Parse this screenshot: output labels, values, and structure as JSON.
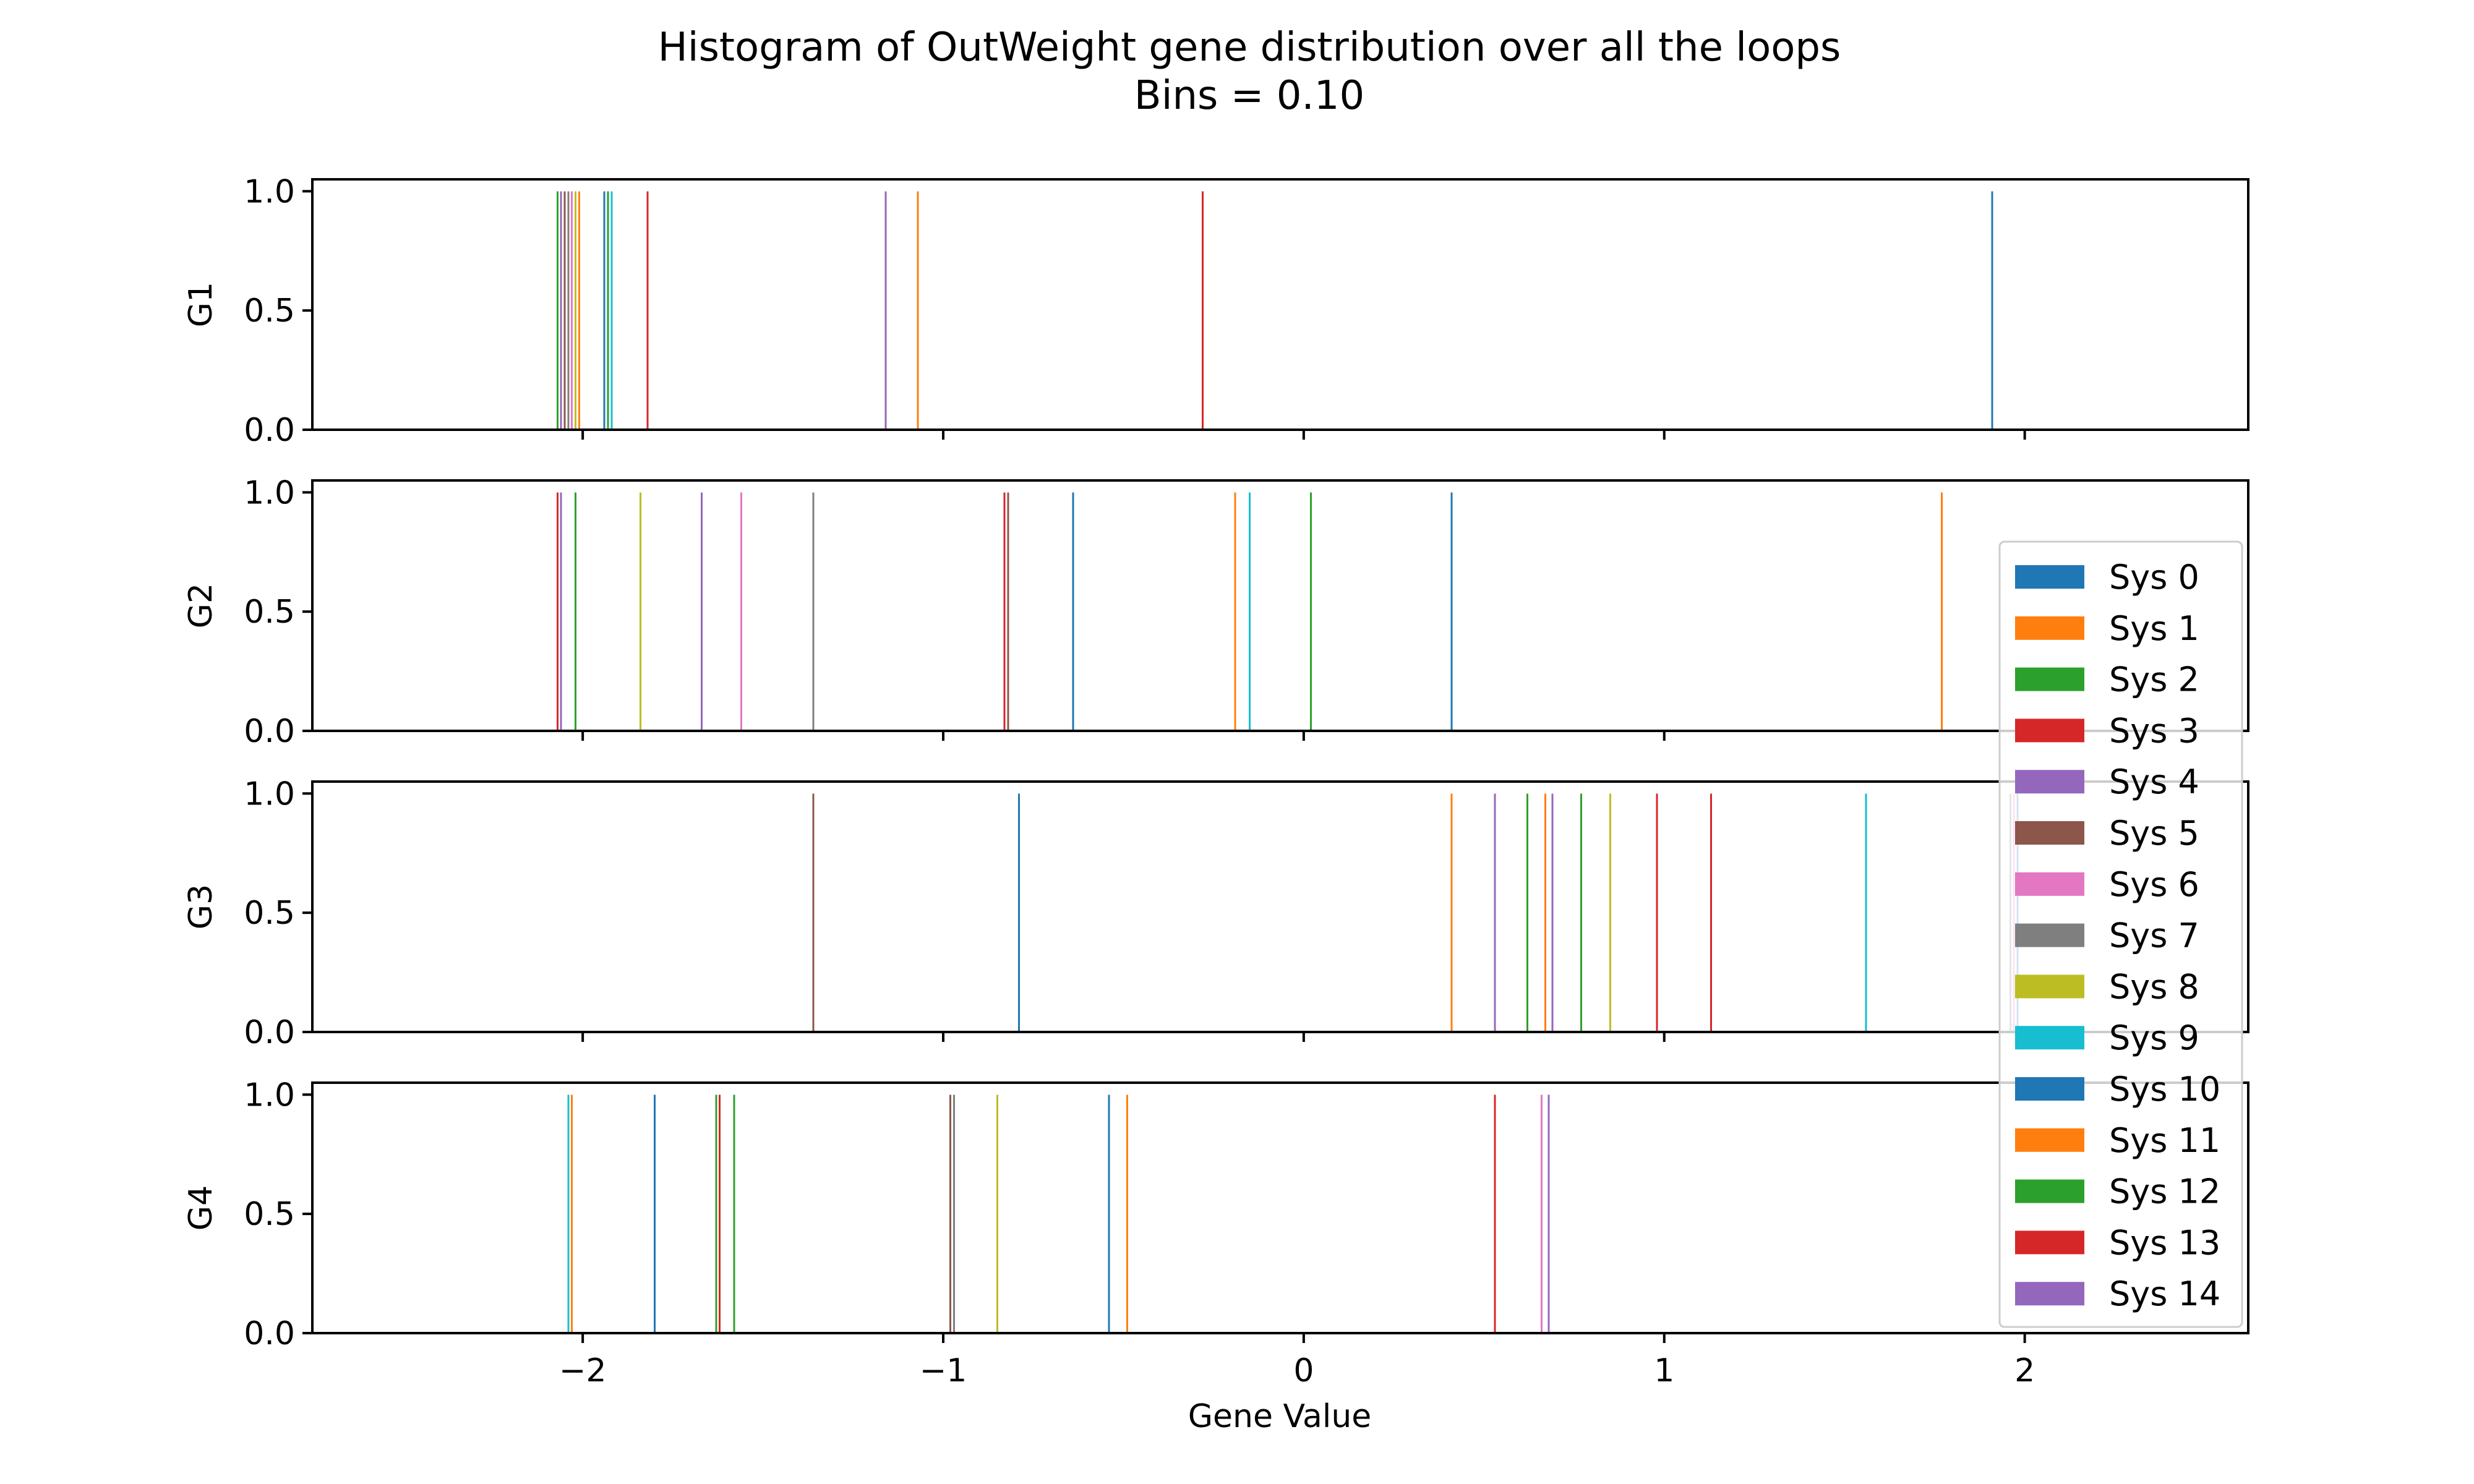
{
  "chart_data": {
    "type": "bar",
    "title": "Histogram of OutWeight gene distribution over all the loops",
    "subtitle": "Bins = 0.10",
    "xlabel": "Gene Value",
    "xlim": [
      -2.75,
      2.62
    ],
    "ylim": [
      0,
      1.05
    ],
    "xticks": [
      -2,
      -1,
      0,
      1,
      2
    ],
    "xtick_labels": [
      "−2",
      "−1",
      "0",
      "1",
      "2"
    ],
    "yticks": [
      0.0,
      0.5,
      1.0
    ],
    "ytick_labels": [
      "0.0",
      "0.5",
      "1.0"
    ],
    "grid": false,
    "legend_position": "right",
    "series": [
      {
        "name": "Sys 0",
        "color": "#1f77b4"
      },
      {
        "name": "Sys 1",
        "color": "#ff7f0e"
      },
      {
        "name": "Sys 2",
        "color": "#2ca02c"
      },
      {
        "name": "Sys 3",
        "color": "#d62728"
      },
      {
        "name": "Sys 4",
        "color": "#9467bd"
      },
      {
        "name": "Sys 5",
        "color": "#8c564b"
      },
      {
        "name": "Sys 6",
        "color": "#e377c2"
      },
      {
        "name": "Sys 7",
        "color": "#7f7f7f"
      },
      {
        "name": "Sys 8",
        "color": "#bcbd22"
      },
      {
        "name": "Sys 9",
        "color": "#17becf"
      },
      {
        "name": "Sys 10",
        "color": "#1f77b4"
      },
      {
        "name": "Sys 11",
        "color": "#ff7f0e"
      },
      {
        "name": "Sys 12",
        "color": "#2ca02c"
      },
      {
        "name": "Sys 13",
        "color": "#d62728"
      },
      {
        "name": "Sys 14",
        "color": "#9467bd"
      }
    ],
    "panels": [
      {
        "label": "G1",
        "bars": [
          {
            "sys": 0,
            "x": 1.91,
            "count": 1
          },
          {
            "sys": 1,
            "x": -1.07,
            "count": 1
          },
          {
            "sys": 2,
            "x": -2.07,
            "count": 1
          },
          {
            "sys": 3,
            "x": -0.28,
            "count": 1
          },
          {
            "sys": 4,
            "x": -1.16,
            "count": 1
          },
          {
            "sys": 5,
            "x": -2.05,
            "count": 1
          },
          {
            "sys": 6,
            "x": -2.03,
            "count": 1
          },
          {
            "sys": 7,
            "x": -2.04,
            "count": 1
          },
          {
            "sys": 8,
            "x": -2.02,
            "count": 1
          },
          {
            "sys": 9,
            "x": -1.92,
            "count": 1
          },
          {
            "sys": 10,
            "x": -1.94,
            "count": 1
          },
          {
            "sys": 11,
            "x": -2.01,
            "count": 1
          },
          {
            "sys": 12,
            "x": -1.93,
            "count": 1
          },
          {
            "sys": 13,
            "x": -1.82,
            "count": 1
          },
          {
            "sys": 14,
            "x": -2.06,
            "count": 1
          }
        ]
      },
      {
        "label": "G2",
        "bars": [
          {
            "sys": 0,
            "x": -0.64,
            "count": 1
          },
          {
            "sys": 1,
            "x": -0.19,
            "count": 1
          },
          {
            "sys": 2,
            "x": -2.02,
            "count": 1
          },
          {
            "sys": 3,
            "x": -2.07,
            "count": 1
          },
          {
            "sys": 4,
            "x": -1.67,
            "count": 1
          },
          {
            "sys": 5,
            "x": -0.82,
            "count": 1
          },
          {
            "sys": 6,
            "x": -1.56,
            "count": 1
          },
          {
            "sys": 7,
            "x": -1.36,
            "count": 1
          },
          {
            "sys": 8,
            "x": -1.84,
            "count": 1
          },
          {
            "sys": 9,
            "x": -0.15,
            "count": 1
          },
          {
            "sys": 10,
            "x": 0.41,
            "count": 1
          },
          {
            "sys": 11,
            "x": 1.77,
            "count": 1
          },
          {
            "sys": 12,
            "x": 0.02,
            "count": 1
          },
          {
            "sys": 13,
            "x": -0.83,
            "count": 1
          },
          {
            "sys": 14,
            "x": -2.06,
            "count": 1
          }
        ]
      },
      {
        "label": "G3",
        "bars": [
          {
            "sys": 0,
            "x": -0.79,
            "count": 1
          },
          {
            "sys": 1,
            "x": 0.41,
            "count": 1
          },
          {
            "sys": 2,
            "x": 0.77,
            "count": 1
          },
          {
            "sys": 3,
            "x": 1.13,
            "count": 1
          },
          {
            "sys": 4,
            "x": 0.53,
            "count": 1
          },
          {
            "sys": 5,
            "x": -1.36,
            "count": 1
          },
          {
            "sys": 6,
            "x": 1.97,
            "count": 1
          },
          {
            "sys": 7,
            "x": 1.96,
            "count": 1
          },
          {
            "sys": 8,
            "x": 0.85,
            "count": 1
          },
          {
            "sys": 9,
            "x": 1.56,
            "count": 1
          },
          {
            "sys": 10,
            "x": 1.98,
            "count": 1
          },
          {
            "sys": 11,
            "x": 0.67,
            "count": 1
          },
          {
            "sys": 12,
            "x": 0.62,
            "count": 1
          },
          {
            "sys": 13,
            "x": 0.98,
            "count": 1
          },
          {
            "sys": 14,
            "x": 0.69,
            "count": 1
          }
        ]
      },
      {
        "label": "G4",
        "bars": [
          {
            "sys": 0,
            "x": -1.8,
            "count": 1
          },
          {
            "sys": 1,
            "x": -0.49,
            "count": 1
          },
          {
            "sys": 2,
            "x": -1.58,
            "count": 1
          },
          {
            "sys": 3,
            "x": 0.53,
            "count": 1
          },
          {
            "sys": 4,
            "x": -0.97,
            "count": 1
          },
          {
            "sys": 5,
            "x": -0.98,
            "count": 1
          },
          {
            "sys": 6,
            "x": 0.66,
            "count": 1
          },
          {
            "sys": 7,
            "x": -0.97,
            "count": 1
          },
          {
            "sys": 8,
            "x": -0.85,
            "count": 1
          },
          {
            "sys": 9,
            "x": -2.04,
            "count": 1
          },
          {
            "sys": 10,
            "x": -0.54,
            "count": 1
          },
          {
            "sys": 11,
            "x": -2.03,
            "count": 1
          },
          {
            "sys": 12,
            "x": -1.63,
            "count": 1
          },
          {
            "sys": 13,
            "x": -1.62,
            "count": 1
          },
          {
            "sys": 14,
            "x": 0.68,
            "count": 1
          }
        ]
      }
    ]
  }
}
